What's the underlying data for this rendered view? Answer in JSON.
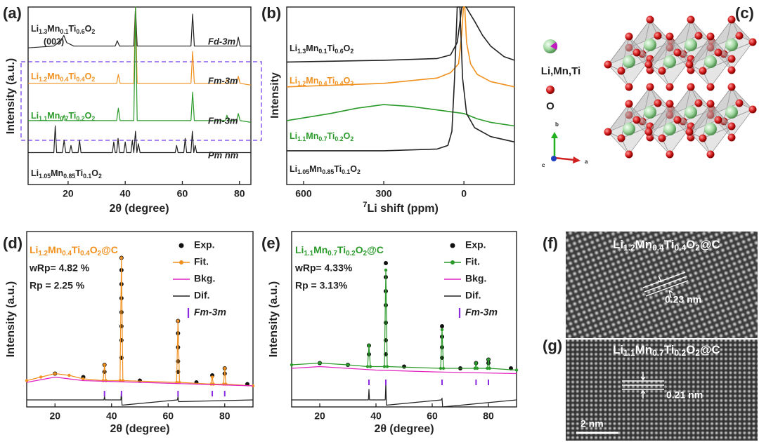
{
  "chart_data": [
    {
      "type": "line",
      "label": "(a)",
      "xlabel": "2θ (degree)",
      "ylabel": "Intensity (a.u.)",
      "xlim": [
        6,
        84
      ],
      "ylim": [
        0,
        100
      ],
      "xticks": [
        20,
        40,
        60,
        80
      ],
      "series": [
        {
          "name": "Li1.3Mn0.1Ti0.6O2",
          "color": "#222222",
          "x": [
            6,
            15,
            17.5,
            18.5,
            19.5,
            22,
            36.5,
            37.2,
            38,
            43,
            43.6,
            44.2,
            63,
            63.6,
            64.2,
            79,
            79.6,
            80.2,
            84
          ],
          "values": [
            77,
            78,
            81,
            84,
            80,
            78,
            78,
            81,
            78,
            78,
            100,
            78,
            78,
            96,
            78,
            78,
            83,
            78,
            78
          ]
        },
        {
          "name": "Li1.2Mn0.4Ti0.4O2",
          "color": "#f0901e",
          "x": [
            6,
            20,
            37,
            37.6,
            38.2,
            43,
            43.6,
            44.2,
            63,
            63.6,
            64.2,
            75,
            75.6,
            76.2,
            79,
            79.6,
            80.2,
            84
          ],
          "values": [
            57,
            57,
            57,
            62,
            57,
            57,
            100,
            57,
            57,
            75,
            57,
            57,
            59,
            57,
            57,
            61,
            57,
            56
          ]
        },
        {
          "name": "Li1.1Mn0.7Ti0.2O2",
          "color": "#2a9a2a",
          "x": [
            6,
            18,
            18.6,
            19.2,
            37,
            37.6,
            38.2,
            43,
            43.6,
            44.2,
            63,
            63.6,
            64.2,
            75,
            75.6,
            76.2,
            79,
            79.6,
            80.2,
            84
          ],
          "values": [
            36,
            36,
            39,
            36,
            36,
            43,
            36,
            36,
            100,
            36,
            36,
            52,
            36,
            36,
            39,
            36,
            36,
            40,
            36,
            35
          ]
        },
        {
          "name": "Li1.05Mn0.85Ti0.1O2",
          "color": "#222222",
          "x": [
            6,
            15,
            15.5,
            16,
            18,
            18.6,
            19.2,
            20.5,
            21,
            21.5,
            23.5,
            24,
            24.5,
            35.5,
            36,
            36.5,
            37,
            37.5,
            38,
            39.5,
            40,
            40.5,
            42,
            42.5,
            43,
            43.6,
            44.1,
            44.6,
            45.2,
            57.5,
            58,
            58.5,
            60.5,
            61,
            61.5,
            63,
            63.5,
            64,
            64.5,
            65,
            84
          ],
          "values": [
            18,
            18,
            33,
            18,
            18,
            25,
            18,
            18,
            22,
            18,
            18,
            25,
            18,
            18,
            24,
            18,
            18,
            26,
            18,
            18,
            24,
            18,
            18,
            25,
            18,
            30,
            18,
            23,
            18,
            18,
            22,
            18,
            18,
            26,
            18,
            18,
            30,
            18,
            22,
            18,
            18
          ]
        }
      ],
      "annotations": [
        "(003)",
        "Fd-3m",
        "Fm-3m",
        "Fm-3m",
        "Pm nm"
      ]
    },
    {
      "type": "line",
      "label": "(b)",
      "xlabel": "7Li shift (ppm)",
      "ylabel": "Intensity",
      "xlim": [
        663,
        -189
      ],
      "ylim": [
        0,
        100
      ],
      "xticks": [
        600,
        300,
        0
      ],
      "series": [
        {
          "name": "Li1.3Mn0.1Ti0.6O2",
          "color": "#222222",
          "x": [
            663,
            300,
            100,
            50,
            25,
            12,
            8,
            -8,
            -20,
            -40,
            -70,
            -100,
            -150,
            -189
          ],
          "values": [
            69,
            70,
            71,
            73,
            80,
            95,
            100,
            100,
            97,
            92,
            84,
            78,
            72,
            70
          ]
        },
        {
          "name": "Li1.2Mn0.4Ti0.4O2",
          "color": "#f0901e",
          "x": [
            663,
            300,
            100,
            50,
            20,
            8,
            2,
            -3,
            -10,
            -25,
            -50,
            -100,
            -189
          ],
          "values": [
            55,
            57,
            60,
            63,
            68,
            85,
            100,
            100,
            80,
            68,
            62,
            58,
            55
          ]
        },
        {
          "name": "Li1.1Mn0.7Ti0.2O2",
          "color": "#2a9a2a",
          "x": [
            663,
            500,
            400,
            300,
            200,
            100,
            50,
            0,
            -50,
            -100,
            -189
          ],
          "values": [
            36,
            40,
            43,
            45,
            44,
            42,
            41,
            40,
            37,
            35,
            33
          ]
        },
        {
          "name": "Li1.05Mn0.85Ti0.1O2",
          "color": "#222222",
          "x": [
            663,
            300,
            100,
            60,
            45,
            35,
            25,
            15,
            5,
            -10,
            -40,
            -100,
            -189
          ],
          "values": [
            19,
            19,
            20,
            22,
            30,
            60,
            100,
            100,
            60,
            40,
            32,
            27,
            24
          ]
        }
      ]
    },
    {
      "type": "line",
      "label": "(d)",
      "xlabel": "2θ (degree)",
      "ylabel": "Intensity (a.u.)",
      "xlim": [
        10,
        90
      ],
      "ylim": [
        0,
        100
      ],
      "xticks": [
        20,
        40,
        60,
        80
      ],
      "title": "Li1.2Mn0.4Ti0.4O2@C",
      "stats": [
        "wRp= 4.82 %",
        "Rp = 2.25 %"
      ],
      "series": [
        {
          "name": "Exp.",
          "color": "#111111",
          "style": "points",
          "x": [
            37.5,
            37.5,
            43.5,
            43.5,
            43.5,
            43.5,
            43.5,
            43.5,
            43.5,
            43.5,
            63.5,
            63.5,
            63.5,
            63.5,
            63.5,
            75.6,
            80,
            80,
            20,
            30,
            50,
            70,
            88
          ],
          "values": [
            24,
            20,
            85,
            78,
            70,
            62,
            54,
            46,
            38,
            28,
            49,
            42,
            34,
            26,
            20,
            18,
            22,
            19,
            19,
            17,
            15,
            14,
            13
          ]
        },
        {
          "name": "Fit.",
          "color": "#f0901e",
          "style": "line-markers",
          "x": [
            10,
            15,
            20,
            25,
            30,
            37,
            37.5,
            38,
            43,
            43.5,
            44,
            63,
            63.5,
            64,
            75.2,
            75.6,
            76,
            79.6,
            80,
            80.4,
            90
          ],
          "values": [
            15,
            17,
            19,
            18,
            16,
            15,
            24,
            15,
            15,
            85,
            15,
            14,
            49,
            14,
            13,
            17,
            13,
            13,
            22,
            13,
            12
          ]
        },
        {
          "name": "Bkg.",
          "color": "#e020c0",
          "style": "line",
          "x": [
            10,
            20,
            30,
            50,
            70,
            90
          ],
          "values": [
            14,
            17,
            15,
            14,
            13,
            12
          ]
        },
        {
          "name": "Dif.",
          "color": "#222222",
          "style": "line",
          "x": [
            10,
            37.3,
            37.5,
            37.7,
            43.3,
            43.5,
            43.7,
            63.3,
            63.5,
            63.7,
            90
          ],
          "values": [
            4,
            4,
            6,
            4,
            4,
            9,
            1,
            4,
            6,
            3,
            4
          ]
        }
      ],
      "phase": {
        "name": "Fm-3m",
        "color": "#8a2be2",
        "x": [
          37.5,
          43.5,
          63.5,
          75.6,
          80
        ]
      }
    },
    {
      "type": "line",
      "label": "(e)",
      "xlabel": "2θ (degree)",
      "ylabel": "Intensity (a.u.)",
      "xlim": [
        10,
        90
      ],
      "ylim": [
        0,
        100
      ],
      "xticks": [
        20,
        40,
        60,
        80
      ],
      "title": "Li1.1Mn0.7Ti0.2O2@C",
      "stats": [
        "wRp= 4.33%",
        "Rp = 3.13%"
      ],
      "series": [
        {
          "name": "Exp.",
          "color": "#111111",
          "style": "points",
          "x": [
            37.5,
            37.5,
            43.5,
            43.5,
            43.5,
            43.5,
            43.5,
            43.5,
            43.5,
            63.5,
            63.5,
            63.5,
            63.5,
            75.6,
            80,
            80,
            20,
            30,
            50,
            70,
            88
          ],
          "values": [
            35,
            30,
            82,
            74,
            66,
            58,
            48,
            38,
            30,
            46,
            40,
            34,
            28,
            25,
            27,
            25,
            25,
            24,
            23,
            22,
            22
          ]
        },
        {
          "name": "Fit.",
          "color": "#2a9a2a",
          "style": "line-markers",
          "x": [
            10,
            20,
            30,
            37,
            37.5,
            38,
            43,
            43.5,
            44,
            63,
            63.5,
            64,
            75.2,
            75.6,
            76,
            79.6,
            80,
            80.4,
            90
          ],
          "values": [
            24,
            25,
            24,
            23,
            35,
            23,
            23,
            78,
            23,
            22,
            44,
            22,
            22,
            25,
            22,
            22,
            27,
            22,
            21
          ]
        },
        {
          "name": "Bkg.",
          "color": "#e020c0",
          "style": "line",
          "x": [
            10,
            20,
            40,
            60,
            90
          ],
          "values": [
            22,
            23,
            21,
            20,
            19
          ]
        },
        {
          "name": "Dif.",
          "color": "#222222",
          "style": "line",
          "x": [
            10,
            37.3,
            37.5,
            37.7,
            43.3,
            43.5,
            43.7,
            63.3,
            63.5,
            63.7,
            90
          ],
          "values": [
            4,
            4,
            10,
            4,
            4,
            14,
            1,
            4,
            5,
            0,
            4
          ]
        }
      ],
      "phase": {
        "name": "Fm-3m",
        "color": "#8a2be2",
        "x": [
          37.5,
          43.5,
          63.5,
          75.6,
          80
        ]
      }
    }
  ],
  "panel_c": {
    "label": "(c)",
    "legend": [
      "Li,Mn,Ti",
      "O"
    ],
    "axes": [
      "b",
      "c",
      "a"
    ]
  },
  "panel_f": {
    "label": "(f)",
    "title": "Li1.2Mn0.4Ti0.4O2@C",
    "spacing": "0.23 nm"
  },
  "panel_g": {
    "label": "(g)",
    "title": "Li1.1Mn0.7Ti0.2O2@C",
    "spacing": "0.21 nm",
    "scale_bar": "2 nm"
  }
}
